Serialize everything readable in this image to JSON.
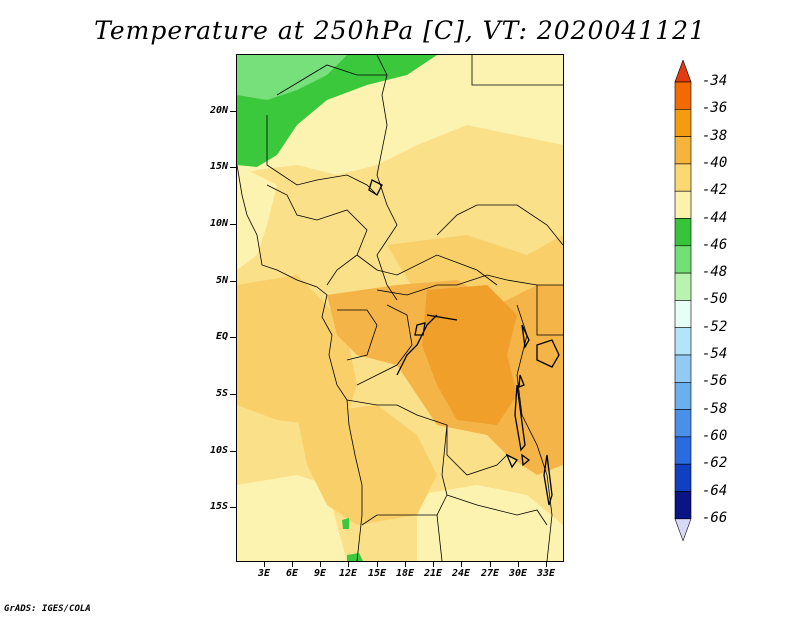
{
  "title": "Temperature at 250hPa [C], VT: 2020041121",
  "credit": "GrADS: IGES/COLA",
  "lat_labels": [
    "20N",
    "15N",
    "10N",
    "5N",
    "EQ",
    "5S",
    "10S",
    "15S"
  ],
  "lon_labels": [
    "3E",
    "6E",
    "9E",
    "12E",
    "15E",
    "18E",
    "21E",
    "24E",
    "27E",
    "30E",
    "33E"
  ],
  "colorbar": {
    "labels": [
      "-34",
      "-36",
      "-38",
      "-40",
      "-42",
      "-44",
      "-46",
      "-48",
      "-50",
      "-52",
      "-54",
      "-56",
      "-58",
      "-60",
      "-62",
      "-64",
      "-66"
    ],
    "colors": [
      "#e33a10",
      "#f26a00",
      "#f49b10",
      "#f7b43c",
      "#fbd872",
      "#fcf2ac",
      "#38c43a",
      "#72e072",
      "#b8f3b0",
      "#e6fff6",
      "#b4e4fa",
      "#92caf4",
      "#6ab0ee",
      "#4a90e8",
      "#2a6ce0",
      "#1040c0",
      "#0a1484",
      "#d8d8f8"
    ],
    "triangle_top": "#e33a10",
    "triangle_bottom": "#d8d8f8"
  },
  "palette": {
    "light_yellow": "#fdf3b0",
    "yellow": "#fbe08a",
    "light_orange": "#f9cf6a",
    "orange": "#f4b448",
    "dark_orange": "#ef9f2a",
    "green": "#3cc83c",
    "light_green": "#78e07a"
  }
}
